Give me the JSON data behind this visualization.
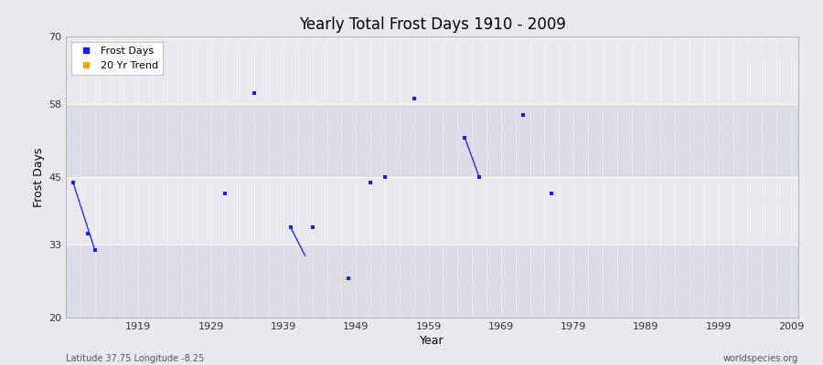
{
  "title": "Yearly Total Frost Days 1910 - 2009",
  "xlabel": "Year",
  "ylabel": "Frost Days",
  "xlim": [
    1909,
    2010
  ],
  "ylim": [
    20,
    70
  ],
  "yticks": [
    20,
    33,
    45,
    58,
    70
  ],
  "xticks": [
    1919,
    1929,
    1939,
    1949,
    1959,
    1969,
    1979,
    1989,
    1999,
    2009
  ],
  "bg_color": "#e8e8ee",
  "band_colors": [
    "#dcdce6",
    "#e8e8ee"
  ],
  "point_color": "#1a1aff",
  "point_size": 8,
  "frost_days_x": [
    1910,
    1912,
    1913,
    1931,
    1935,
    1940,
    1943,
    1948,
    1951,
    1953,
    1957,
    1964,
    1966,
    1972,
    1976
  ],
  "frost_days_y": [
    44,
    35,
    32,
    42,
    60,
    36,
    36,
    27,
    44,
    45,
    59,
    52,
    45,
    56,
    42
  ],
  "trend_segments": [
    {
      "x": [
        1910,
        1913
      ],
      "y": [
        44,
        32
      ]
    },
    {
      "x": [
        1940,
        1942
      ],
      "y": [
        36,
        31
      ]
    },
    {
      "x": [
        1964,
        1966
      ],
      "y": [
        52,
        45
      ]
    }
  ],
  "trend_color": "#1a1aff",
  "bottom_left_text": "Latitude 37.75 Longitude -8.25",
  "bottom_right_text": "worldspecies.org",
  "legend_items": [
    {
      "label": "Frost Days",
      "color": "#1a1aff",
      "marker": "s"
    },
    {
      "label": "20 Yr Trend",
      "color": "#ffa500",
      "marker": "s"
    }
  ]
}
